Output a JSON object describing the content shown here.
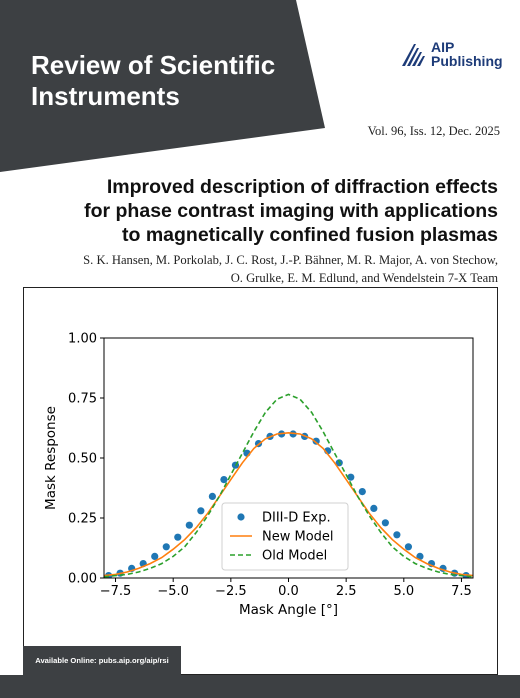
{
  "colors": {
    "banner": "#3d4043",
    "publisher_blue": "#1d3b78",
    "exp": "#1f77b4",
    "new_model": "#ff7f0e",
    "old_model": "#2ca02c"
  },
  "journal": {
    "title": "Review of Scientific\nInstruments"
  },
  "publisher": {
    "name": "AIP\nPublishing",
    "logo_icon": "aip-stripes-logo"
  },
  "issue": {
    "text": "Vol. 96, Iss. 12, Dec. 2025"
  },
  "article": {
    "title": "Improved description of diffraction effects\nfor phase contrast imaging with applications\nto magnetically confined fusion plasmas",
    "authors": "S. K. Hansen, M. Porkolab, J. C. Rost, J.-P. Bähner, M. R. Major, A. von Stechow,\nO. Grulke, E. M. Edlund, and Wendelstein 7-X Team"
  },
  "footer": {
    "online_text": "Available Online: pubs.aip.org/aip/rsi"
  },
  "chart_data": {
    "type": "scatter",
    "xlabel": "Mask Angle [°]",
    "ylabel": "Mask Response",
    "xlim": [
      -8,
      8
    ],
    "ylim": [
      0,
      1
    ],
    "xticks": [
      -7.5,
      -5.0,
      -2.5,
      0.0,
      2.5,
      5.0,
      7.5
    ],
    "xtick_labels": [
      "−7.5",
      "−5.0",
      "−2.5",
      "0.0",
      "2.5",
      "5.0",
      "7.5"
    ],
    "yticks": [
      0.0,
      0.25,
      0.5,
      0.75,
      1.0
    ],
    "ytick_labels": [
      "0.00",
      "0.25",
      "0.50",
      "0.75",
      "1.00"
    ],
    "grid": false,
    "legend_position": "lower-right",
    "series": [
      {
        "name": "DIII-D Exp.",
        "style": "markers",
        "x": [
          -7.8,
          -7.3,
          -6.8,
          -6.3,
          -5.8,
          -5.3,
          -4.8,
          -4.3,
          -3.8,
          -3.3,
          -2.8,
          -2.3,
          -1.8,
          -1.3,
          -0.8,
          -0.3,
          0.2,
          0.7,
          1.2,
          1.7,
          2.2,
          2.7,
          3.2,
          3.7,
          4.2,
          4.7,
          5.2,
          5.7,
          6.2,
          6.7,
          7.2,
          7.7
        ],
        "y": [
          0.01,
          0.02,
          0.04,
          0.06,
          0.09,
          0.13,
          0.17,
          0.22,
          0.28,
          0.34,
          0.41,
          0.47,
          0.52,
          0.56,
          0.59,
          0.6,
          0.6,
          0.59,
          0.57,
          0.53,
          0.48,
          0.42,
          0.36,
          0.29,
          0.23,
          0.18,
          0.13,
          0.09,
          0.06,
          0.04,
          0.02,
          0.01
        ]
      },
      {
        "name": "New Model",
        "style": "solid",
        "x": [
          -8.0,
          -7.5,
          -7.0,
          -6.5,
          -6.0,
          -5.5,
          -5.0,
          -4.5,
          -4.0,
          -3.5,
          -3.0,
          -2.5,
          -2.0,
          -1.5,
          -1.0,
          -0.5,
          0.0,
          0.5,
          1.0,
          1.5,
          2.0,
          2.5,
          3.0,
          3.5,
          4.0,
          4.5,
          5.0,
          5.5,
          6.0,
          6.5,
          7.0,
          7.5,
          8.0
        ],
        "y": [
          0.01,
          0.015,
          0.025,
          0.04,
          0.06,
          0.085,
          0.12,
          0.16,
          0.21,
          0.27,
          0.34,
          0.41,
          0.48,
          0.54,
          0.58,
          0.6,
          0.605,
          0.6,
          0.58,
          0.54,
          0.48,
          0.41,
          0.34,
          0.27,
          0.21,
          0.16,
          0.12,
          0.085,
          0.06,
          0.04,
          0.025,
          0.015,
          0.01
        ]
      },
      {
        "name": "Old Model",
        "style": "dashed",
        "x": [
          -8.0,
          -7.5,
          -7.0,
          -6.5,
          -6.0,
          -5.5,
          -5.0,
          -4.5,
          -4.0,
          -3.5,
          -3.0,
          -2.5,
          -2.0,
          -1.5,
          -1.0,
          -0.5,
          0.0,
          0.5,
          1.0,
          1.5,
          2.0,
          2.5,
          3.0,
          3.5,
          4.0,
          4.5,
          5.0,
          5.5,
          6.0,
          6.5,
          7.0,
          7.5,
          8.0
        ],
        "y": [
          0.005,
          0.01,
          0.015,
          0.025,
          0.04,
          0.06,
          0.09,
          0.13,
          0.19,
          0.26,
          0.34,
          0.43,
          0.52,
          0.61,
          0.69,
          0.745,
          0.765,
          0.745,
          0.69,
          0.61,
          0.52,
          0.43,
          0.34,
          0.26,
          0.19,
          0.13,
          0.09,
          0.06,
          0.04,
          0.025,
          0.015,
          0.01,
          0.005
        ]
      }
    ]
  }
}
